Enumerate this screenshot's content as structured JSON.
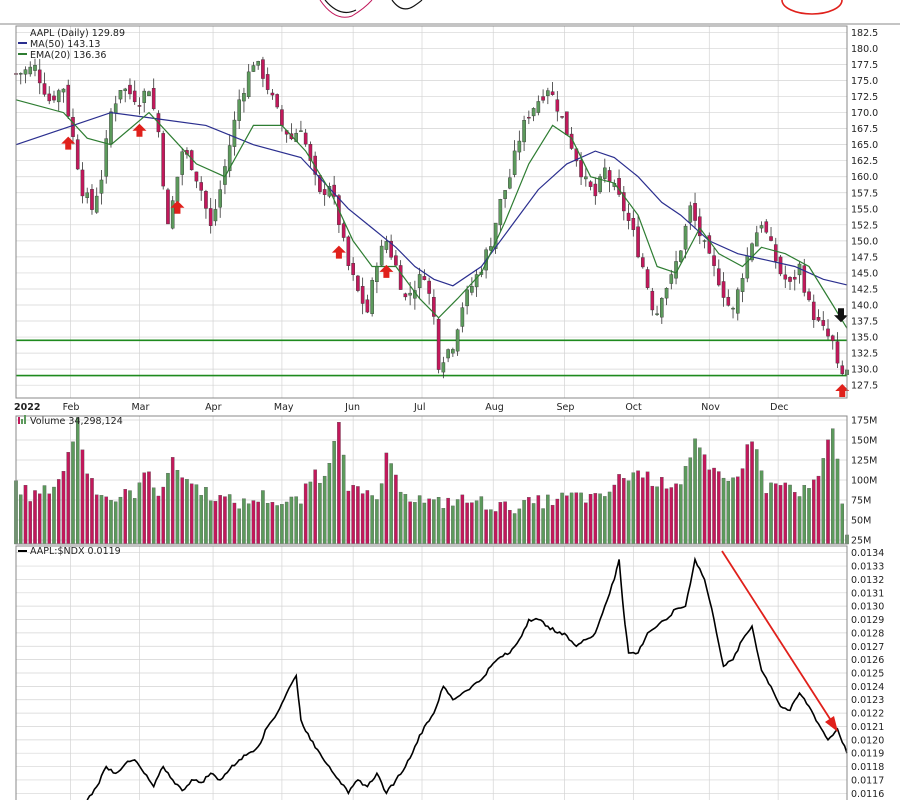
{
  "chart_data": [
    {
      "type": "candlestick",
      "title": "AAPL (Daily) 129.89",
      "legend": [
        {
          "label": "MA(50) 143.13",
          "color": "#2b2f8f"
        },
        {
          "label": "EMA(20) 136.36",
          "color": "#2e7d32"
        }
      ],
      "ylim": [
        125.5,
        183.5
      ],
      "yticks": [
        "182.5",
        "180.0",
        "177.5",
        "175.0",
        "172.5",
        "170.0",
        "167.5",
        "165.0",
        "162.5",
        "160.0",
        "157.5",
        "155.0",
        "152.5",
        "150.0",
        "147.5",
        "145.0",
        "142.5",
        "140.0",
        "137.5",
        "135.0",
        "132.5",
        "130.0",
        "127.5"
      ],
      "x_labels": [
        "2022",
        "Feb",
        "Mar",
        "Apr",
        "May",
        "Jun",
        "Jul",
        "Aug",
        "Sep",
        "Oct",
        "Nov",
        "Dec"
      ],
      "price_path": [
        [
          0,
          176
        ],
        [
          8,
          177
        ],
        [
          14,
          172
        ],
        [
          20,
          174
        ],
        [
          28,
          158
        ],
        [
          32,
          155
        ],
        [
          36,
          160
        ],
        [
          40,
          170
        ],
        [
          44,
          174
        ],
        [
          48,
          173
        ],
        [
          52,
          172
        ],
        [
          56,
          174
        ],
        [
          60,
          167
        ],
        [
          64,
          152
        ],
        [
          68,
          160
        ],
        [
          70,
          164
        ],
        [
          74,
          162
        ],
        [
          78,
          158
        ],
        [
          82,
          152
        ],
        [
          86,
          158
        ],
        [
          90,
          165
        ],
        [
          94,
          172
        ],
        [
          100,
          178
        ],
        [
          104,
          176
        ],
        [
          108,
          172
        ],
        [
          112,
          168
        ],
        [
          116,
          166
        ],
        [
          120,
          168
        ],
        [
          124,
          162
        ],
        [
          128,
          157
        ],
        [
          132,
          159
        ],
        [
          136,
          153
        ],
        [
          140,
          146
        ],
        [
          144,
          142
        ],
        [
          148,
          139
        ],
        [
          152,
          147
        ],
        [
          156,
          150
        ],
        [
          160,
          146
        ],
        [
          164,
          141
        ],
        [
          168,
          143
        ],
        [
          172,
          145
        ],
        [
          176,
          138
        ],
        [
          178,
          131
        ],
        [
          180,
          132
        ],
        [
          184,
          134
        ],
        [
          188,
          140
        ],
        [
          192,
          143
        ],
        [
          196,
          146
        ],
        [
          200,
          150
        ],
        [
          204,
          156
        ],
        [
          208,
          160
        ],
        [
          212,
          166
        ],
        [
          216,
          170
        ],
        [
          220,
          172
        ],
        [
          224,
          174
        ],
        [
          228,
          171
        ],
        [
          232,
          167
        ],
        [
          236,
          163
        ],
        [
          240,
          159
        ],
        [
          244,
          157
        ],
        [
          248,
          161
        ],
        [
          252,
          158
        ],
        [
          256,
          155
        ],
        [
          260,
          151
        ],
        [
          264,
          146
        ],
        [
          268,
          140
        ],
        [
          270,
          139
        ],
        [
          272,
          142
        ],
        [
          276,
          144
        ],
        [
          280,
          149
        ],
        [
          284,
          155
        ],
        [
          288,
          151
        ],
        [
          292,
          147
        ],
        [
          296,
          144
        ],
        [
          300,
          140
        ],
        [
          302,
          139
        ],
        [
          306,
          145
        ],
        [
          310,
          150
        ],
        [
          314,
          153
        ],
        [
          318,
          149
        ],
        [
          322,
          145
        ],
        [
          326,
          143
        ],
        [
          330,
          146
        ],
        [
          334,
          140
        ],
        [
          338,
          137
        ],
        [
          340,
          136
        ],
        [
          344,
          134
        ],
        [
          346,
          130
        ],
        [
          348,
          129
        ],
        [
          350,
          129.9
        ]
      ],
      "ma50_path": [
        [
          0,
          165
        ],
        [
          40,
          170
        ],
        [
          60,
          169
        ],
        [
          80,
          168
        ],
        [
          100,
          165
        ],
        [
          120,
          163
        ],
        [
          130,
          159
        ],
        [
          140,
          155
        ],
        [
          150,
          152
        ],
        [
          160,
          149
        ],
        [
          168,
          146
        ],
        [
          176,
          144
        ],
        [
          184,
          143
        ],
        [
          196,
          146
        ],
        [
          208,
          152
        ],
        [
          220,
          158
        ],
        [
          232,
          162
        ],
        [
          244,
          164
        ],
        [
          252,
          163
        ],
        [
          262,
          160
        ],
        [
          272,
          156
        ],
        [
          280,
          154
        ],
        [
          292,
          150
        ],
        [
          304,
          148
        ],
        [
          316,
          147
        ],
        [
          328,
          146
        ],
        [
          340,
          144
        ],
        [
          350,
          143.13
        ]
      ],
      "ema20_path": [
        [
          0,
          172
        ],
        [
          20,
          170
        ],
        [
          30,
          166
        ],
        [
          40,
          165
        ],
        [
          56,
          170
        ],
        [
          66,
          166
        ],
        [
          76,
          162
        ],
        [
          88,
          160
        ],
        [
          100,
          168
        ],
        [
          112,
          168
        ],
        [
          122,
          164
        ],
        [
          132,
          158
        ],
        [
          142,
          150
        ],
        [
          150,
          146
        ],
        [
          160,
          146
        ],
        [
          170,
          141
        ],
        [
          178,
          138
        ],
        [
          186,
          141
        ],
        [
          196,
          145
        ],
        [
          206,
          153
        ],
        [
          216,
          162
        ],
        [
          226,
          168
        ],
        [
          234,
          166
        ],
        [
          242,
          160
        ],
        [
          252,
          159
        ],
        [
          262,
          154
        ],
        [
          270,
          146
        ],
        [
          278,
          145
        ],
        [
          288,
          152
        ],
        [
          296,
          148
        ],
        [
          306,
          146
        ],
        [
          314,
          149
        ],
        [
          324,
          148
        ],
        [
          334,
          146
        ],
        [
          344,
          140
        ],
        [
          350,
          136.36
        ]
      ],
      "support_levels": [
        134.5,
        129.0
      ],
      "up_arrows_at_day": [
        22,
        52,
        68,
        136,
        156,
        348
      ],
      "down_arrow_day": 350
    },
    {
      "type": "bar",
      "title": "Volume 34,298,124",
      "ylim": [
        20,
        180
      ],
      "yticks": [
        "175M",
        "150M",
        "125M",
        "100M",
        "75M",
        "50M",
        "25M"
      ],
      "volume_path": [
        [
          0,
          95
        ],
        [
          6,
          80
        ],
        [
          12,
          85
        ],
        [
          18,
          100
        ],
        [
          22,
          130
        ],
        [
          26,
          175
        ],
        [
          30,
          110
        ],
        [
          34,
          90
        ],
        [
          40,
          75
        ],
        [
          50,
          85
        ],
        [
          56,
          110
        ],
        [
          60,
          85
        ],
        [
          66,
          120
        ],
        [
          74,
          95
        ],
        [
          80,
          85
        ],
        [
          88,
          75
        ],
        [
          96,
          70
        ],
        [
          104,
          80
        ],
        [
          112,
          70
        ],
        [
          120,
          75
        ],
        [
          126,
          110
        ],
        [
          130,
          100
        ],
        [
          136,
          180
        ],
        [
          140,
          95
        ],
        [
          146,
          80
        ],
        [
          152,
          75
        ],
        [
          156,
          125
        ],
        [
          160,
          100
        ],
        [
          166,
          80
        ],
        [
          176,
          70
        ],
        [
          186,
          75
        ],
        [
          196,
          72
        ],
        [
          206,
          65
        ],
        [
          216,
          70
        ],
        [
          226,
          75
        ],
        [
          236,
          80
        ],
        [
          246,
          75
        ],
        [
          254,
          100
        ],
        [
          262,
          110
        ],
        [
          272,
          95
        ],
        [
          280,
          100
        ],
        [
          286,
          150
        ],
        [
          292,
          110
        ],
        [
          300,
          95
        ],
        [
          306,
          120
        ],
        [
          310,
          155
        ],
        [
          316,
          90
        ],
        [
          324,
          95
        ],
        [
          330,
          80
        ],
        [
          338,
          100
        ],
        [
          344,
          165
        ],
        [
          350,
          34
        ]
      ]
    },
    {
      "type": "line",
      "title": "AAPL:$NDX 0.0119",
      "ylim": [
        0.01155,
        0.01345
      ],
      "yticks": [
        "0.0134",
        "0.0133",
        "0.0132",
        "0.0131",
        "0.0130",
        "0.0129",
        "0.0128",
        "0.0127",
        "0.0126",
        "0.0125",
        "0.0124",
        "0.0123",
        "0.0122",
        "0.0121",
        "0.0120",
        "0.0119",
        "0.0118",
        "0.0117",
        "0.0116"
      ],
      "ratio_path": [
        [
          30,
          0.01155
        ],
        [
          34,
          0.01165
        ],
        [
          38,
          0.0118
        ],
        [
          42,
          0.01175
        ],
        [
          46,
          0.01182
        ],
        [
          50,
          0.01185
        ],
        [
          54,
          0.01175
        ],
        [
          58,
          0.01165
        ],
        [
          62,
          0.0118
        ],
        [
          66,
          0.0117
        ],
        [
          70,
          0.01162
        ],
        [
          74,
          0.0117
        ],
        [
          78,
          0.01168
        ],
        [
          82,
          0.01175
        ],
        [
          86,
          0.0117
        ],
        [
          90,
          0.01178
        ],
        [
          94,
          0.01185
        ],
        [
          98,
          0.0119
        ],
        [
          102,
          0.01195
        ],
        [
          106,
          0.0121
        ],
        [
          110,
          0.0122
        ],
        [
          114,
          0.01235
        ],
        [
          118,
          0.01248
        ],
        [
          120,
          0.01215
        ],
        [
          124,
          0.012
        ],
        [
          128,
          0.0119
        ],
        [
          132,
          0.0118
        ],
        [
          136,
          0.0117
        ],
        [
          140,
          0.0116
        ],
        [
          144,
          0.0117
        ],
        [
          148,
          0.01165
        ],
        [
          152,
          0.01175
        ],
        [
          156,
          0.0116
        ],
        [
          160,
          0.0117
        ],
        [
          164,
          0.0118
        ],
        [
          168,
          0.01195
        ],
        [
          172,
          0.0121
        ],
        [
          176,
          0.0122
        ],
        [
          180,
          0.0124
        ],
        [
          184,
          0.0123
        ],
        [
          188,
          0.01235
        ],
        [
          192,
          0.0124
        ],
        [
          196,
          0.01245
        ],
        [
          200,
          0.01255
        ],
        [
          204,
          0.01262
        ],
        [
          208,
          0.01265
        ],
        [
          212,
          0.01275
        ],
        [
          216,
          0.0129
        ],
        [
          220,
          0.0129
        ],
        [
          224,
          0.01285
        ],
        [
          228,
          0.0128
        ],
        [
          232,
          0.01278
        ],
        [
          236,
          0.0127
        ],
        [
          240,
          0.01275
        ],
        [
          244,
          0.0128
        ],
        [
          248,
          0.013
        ],
        [
          252,
          0.0132
        ],
        [
          254,
          0.01335
        ],
        [
          256,
          0.01295
        ],
        [
          258,
          0.01265
        ],
        [
          262,
          0.01265
        ],
        [
          266,
          0.0128
        ],
        [
          270,
          0.01285
        ],
        [
          274,
          0.0129
        ],
        [
          278,
          0.01298
        ],
        [
          282,
          0.013
        ],
        [
          286,
          0.01335
        ],
        [
          290,
          0.0132
        ],
        [
          294,
          0.0129
        ],
        [
          298,
          0.01255
        ],
        [
          302,
          0.0126
        ],
        [
          306,
          0.01275
        ],
        [
          310,
          0.01285
        ],
        [
          314,
          0.01252
        ],
        [
          318,
          0.0124
        ],
        [
          322,
          0.01225
        ],
        [
          326,
          0.01222
        ],
        [
          330,
          0.01235
        ],
        [
          334,
          0.01225
        ],
        [
          338,
          0.01212
        ],
        [
          342,
          0.012
        ],
        [
          346,
          0.01208
        ],
        [
          350,
          0.0119
        ]
      ]
    }
  ],
  "colors": {
    "up": "#5c9a5c",
    "down": "#c2185b",
    "ma50": "#2b2f8f",
    "ema20": "#2e7d32",
    "support": "#1e8a1e",
    "marker": "#e0201b",
    "ratio": "#000000",
    "grid": "#d4d4d4"
  }
}
